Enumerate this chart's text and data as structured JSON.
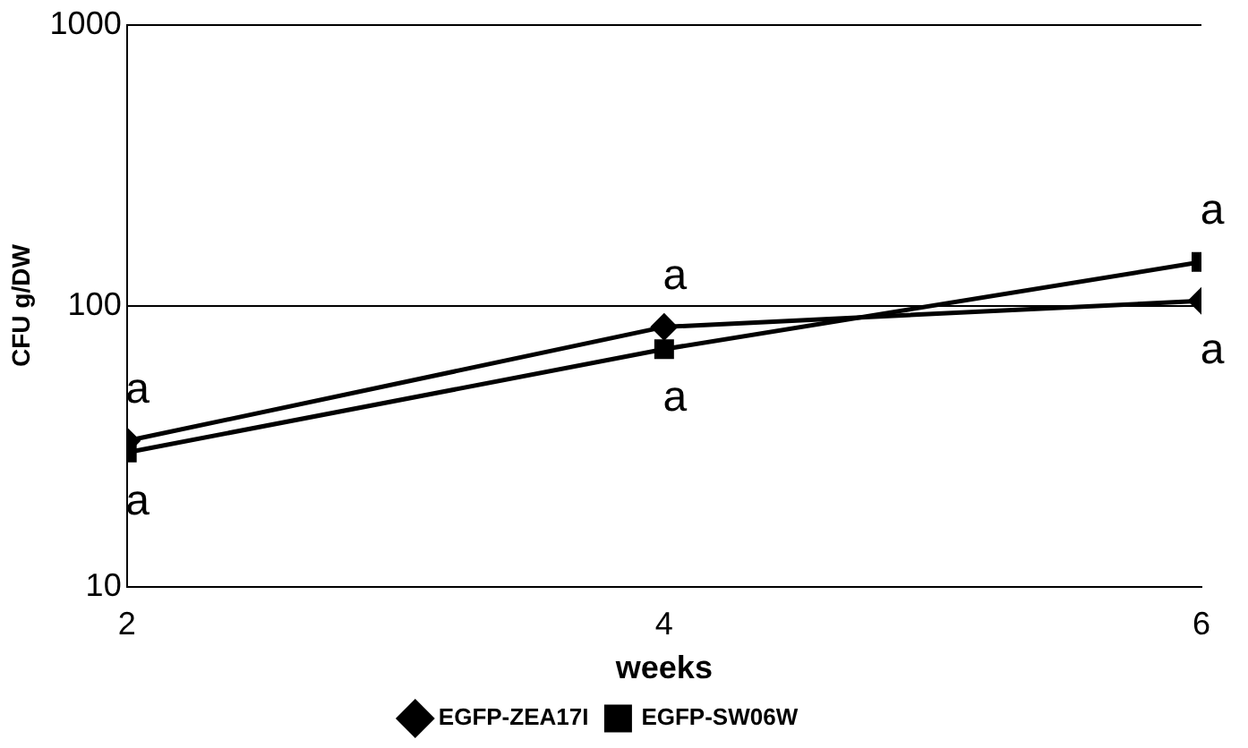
{
  "chart_data": {
    "type": "line",
    "xlabel": "weeks",
    "ylabel": "CFU g/DW",
    "x": [
      2,
      4,
      6
    ],
    "xlim": [
      2,
      6
    ],
    "xticks": [
      2,
      4,
      6
    ],
    "ylim": [
      10,
      1000
    ],
    "yticks": [
      10,
      100,
      1000
    ],
    "log": "y",
    "grid": "y",
    "legend": "bottom",
    "series": [
      {
        "name": "EGFP-ZEA17I",
        "color": "#000000",
        "marker": "diamond",
        "values": [
          33,
          84,
          104
        ]
      },
      {
        "name": "EGFP-SW06W",
        "color": "#000000",
        "marker": "square",
        "values": [
          30,
          70,
          143
        ]
      }
    ],
    "annotations": [
      {
        "text": "a",
        "x": 2,
        "y": 33
      },
      {
        "text": "a",
        "x": 2,
        "y": 30
      },
      {
        "text": "a",
        "x": 4,
        "y": 84
      },
      {
        "text": "a",
        "x": 4,
        "y": 70
      },
      {
        "text": "a",
        "x": 6,
        "y": 143
      },
      {
        "text": "a",
        "x": 6,
        "y": 104
      }
    ]
  }
}
